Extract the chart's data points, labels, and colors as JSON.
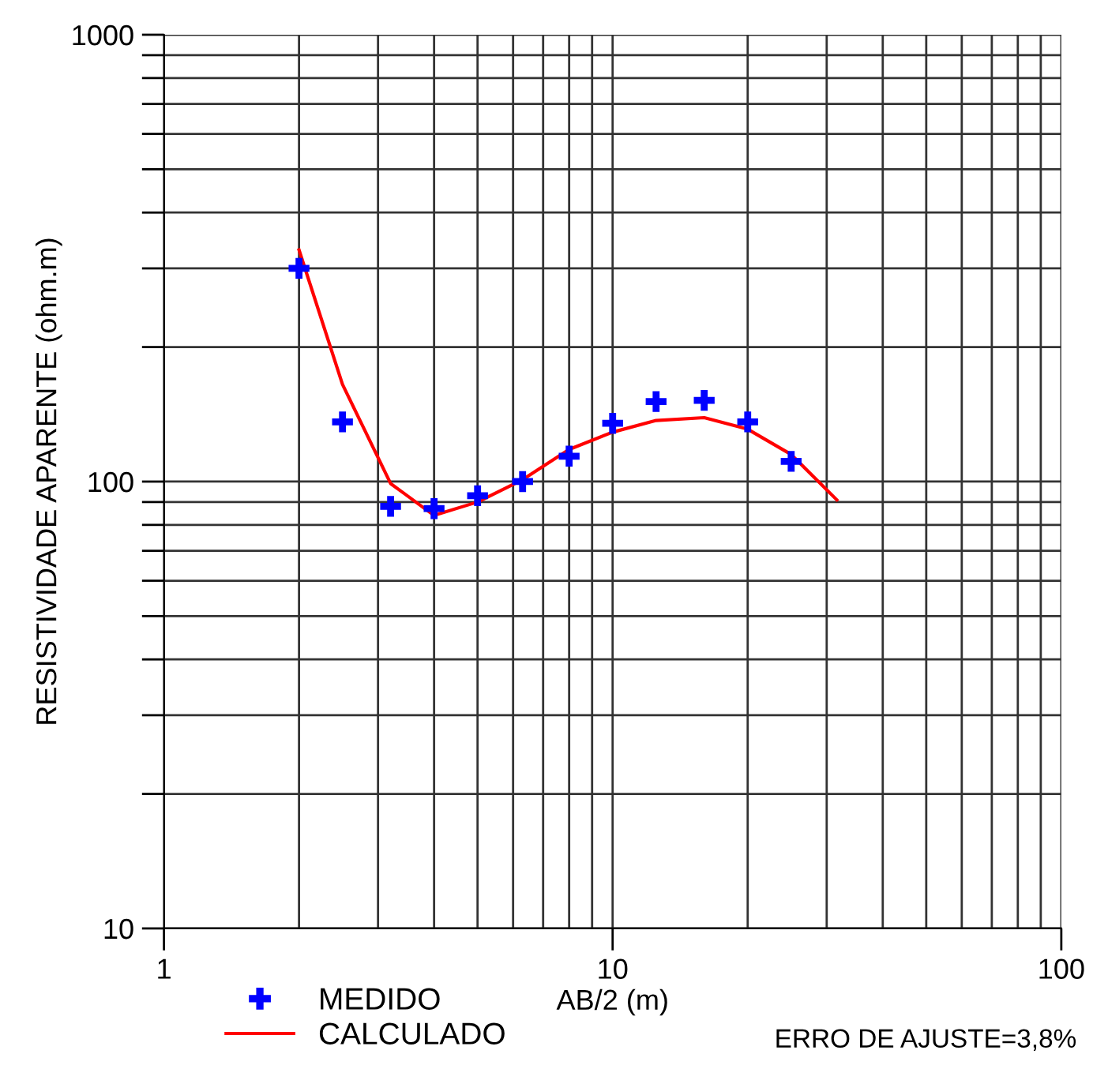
{
  "chart_data": {
    "type": "scatter",
    "xlabel": "AB/2 (m)",
    "ylabel": "RESISTIVIDADE APARENTE (ohm.m)",
    "log": "xy",
    "xlim": [
      1,
      100
    ],
    "ylim": [
      10,
      1000
    ],
    "xticks": [
      1,
      10,
      100
    ],
    "yticks": [
      10,
      100,
      1000
    ],
    "grid": true,
    "legend": "bottom left",
    "series": [
      {
        "name": "MEDIDO",
        "marker": "cross",
        "color": "#0000ff",
        "x": [
          2,
          2.5,
          3.2,
          4,
          5,
          6.3,
          8,
          10,
          12.5,
          16,
          20,
          25
        ],
        "values": [
          300,
          136,
          88,
          87,
          93,
          100,
          114,
          135,
          151,
          152,
          136,
          111
        ]
      },
      {
        "name": "CALCULADO",
        "type": "line",
        "marker": "none",
        "color": "#ff0000",
        "x": [
          2,
          2.5,
          3.2,
          4,
          5,
          6.3,
          8,
          10,
          12.5,
          16,
          20,
          25,
          31.6
        ],
        "values": [
          330,
          165,
          99,
          84,
          90,
          101,
          118,
          129,
          137,
          139,
          131,
          115,
          91
        ]
      }
    ],
    "annotations": [
      "ERRO DE AJUSTE=3,8%"
    ]
  }
}
